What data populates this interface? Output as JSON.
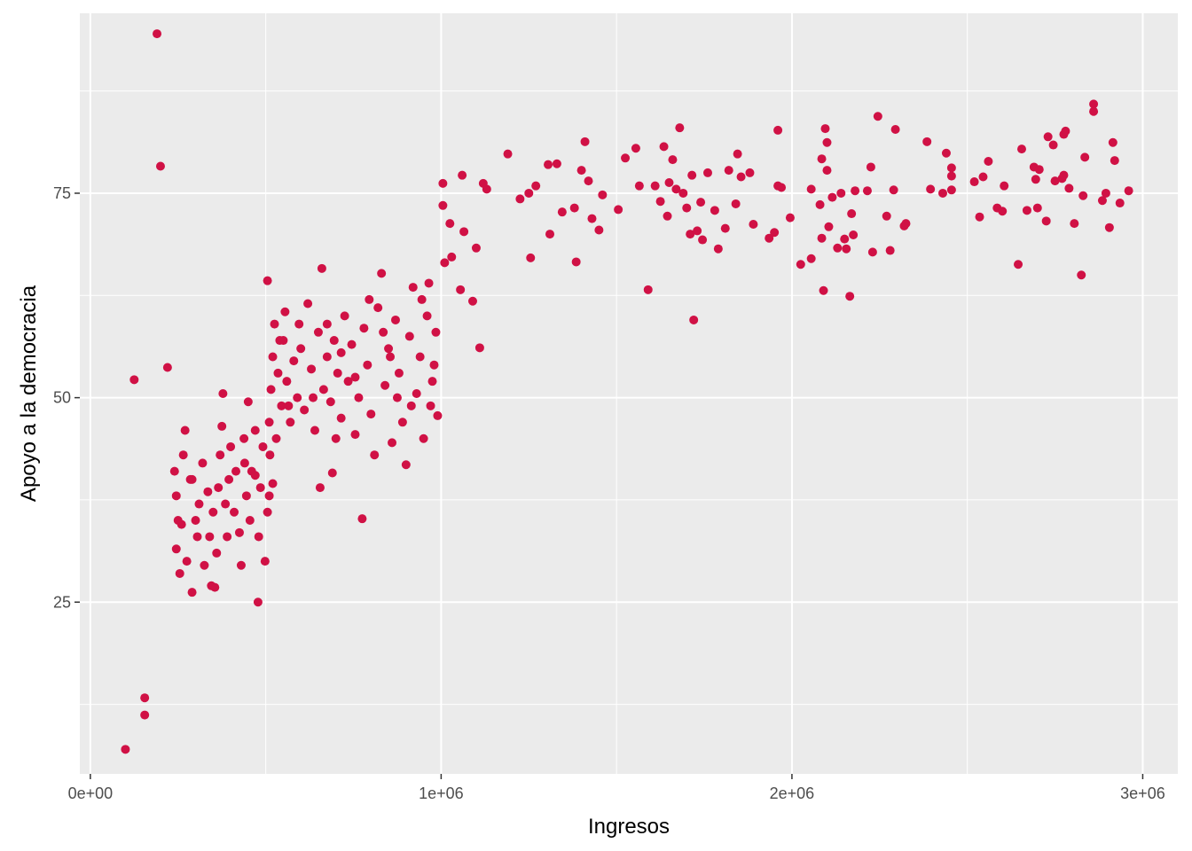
{
  "chart_data": {
    "type": "scatter",
    "title": "",
    "xlabel": "Ingresos",
    "ylabel": "Apoyo a la democracia",
    "xlim": [
      -30000,
      3100000
    ],
    "ylim": [
      4,
      97
    ],
    "x_ticks": [
      0,
      1000000,
      2000000,
      3000000
    ],
    "x_tick_labels": [
      "0e+00",
      "1e+06",
      "2e+06",
      "3e+06"
    ],
    "y_ticks": [
      25,
      50,
      75
    ],
    "y_tick_labels": [
      "25",
      "50",
      "75"
    ],
    "grid": true,
    "legend": "none",
    "colors": {
      "point": "#d01145",
      "panel": "#ebebeb",
      "grid": "#ffffff"
    },
    "points": [
      [
        100000,
        7
      ],
      [
        155000,
        11.2
      ],
      [
        155000,
        13.3
      ],
      [
        125000,
        52.2
      ],
      [
        190000,
        94.5
      ],
      [
        200000,
        78.3
      ],
      [
        220000,
        53.7
      ],
      [
        240000,
        41
      ],
      [
        245000,
        38
      ],
      [
        250000,
        35
      ],
      [
        245000,
        31.5
      ],
      [
        255000,
        28.5
      ],
      [
        260000,
        34.5
      ],
      [
        265000,
        43
      ],
      [
        270000,
        46
      ],
      [
        275000,
        30
      ],
      [
        285000,
        40
      ],
      [
        290000,
        26.2
      ],
      [
        300000,
        35
      ],
      [
        305000,
        33
      ],
      [
        310000,
        37
      ],
      [
        320000,
        42
      ],
      [
        325000,
        29.5
      ],
      [
        335000,
        38.5
      ],
      [
        340000,
        33
      ],
      [
        350000,
        36
      ],
      [
        355000,
        26.8
      ],
      [
        360000,
        31
      ],
      [
        365000,
        39
      ],
      [
        370000,
        43
      ],
      [
        375000,
        46.5
      ],
      [
        378000,
        50.5
      ],
      [
        385000,
        37
      ],
      [
        390000,
        33
      ],
      [
        395000,
        40
      ],
      [
        400000,
        44
      ],
      [
        410000,
        36
      ],
      [
        415000,
        41
      ],
      [
        425000,
        33.5
      ],
      [
        430000,
        29.5
      ],
      [
        438000,
        45
      ],
      [
        445000,
        38
      ],
      [
        450000,
        49.5
      ],
      [
        455000,
        35
      ],
      [
        460000,
        41
      ],
      [
        470000,
        46
      ],
      [
        478000,
        25
      ],
      [
        480000,
        33
      ],
      [
        485000,
        39
      ],
      [
        492000,
        44
      ],
      [
        498000,
        30
      ],
      [
        505000,
        36
      ],
      [
        512000,
        43
      ],
      [
        470000,
        40.5
      ],
      [
        510000,
        38
      ],
      [
        520000,
        39.5
      ],
      [
        345000,
        27
      ],
      [
        290000,
        40
      ],
      [
        440000,
        42
      ],
      [
        505000,
        64.3
      ],
      [
        510000,
        47
      ],
      [
        515000,
        51
      ],
      [
        520000,
        55
      ],
      [
        525000,
        59
      ],
      [
        530000,
        45
      ],
      [
        535000,
        53
      ],
      [
        545000,
        49
      ],
      [
        550000,
        57
      ],
      [
        555000,
        60.5
      ],
      [
        560000,
        52
      ],
      [
        570000,
        47
      ],
      [
        580000,
        54.5
      ],
      [
        590000,
        50
      ],
      [
        600000,
        56
      ],
      [
        610000,
        48.5
      ],
      [
        620000,
        61.5
      ],
      [
        630000,
        53.5
      ],
      [
        640000,
        46
      ],
      [
        650000,
        58
      ],
      [
        655000,
        39
      ],
      [
        660000,
        65.8
      ],
      [
        665000,
        51
      ],
      [
        675000,
        55
      ],
      [
        685000,
        49.5
      ],
      [
        690000,
        40.8
      ],
      [
        695000,
        57
      ],
      [
        705000,
        53
      ],
      [
        715000,
        47.5
      ],
      [
        725000,
        60
      ],
      [
        735000,
        52
      ],
      [
        745000,
        56.5
      ],
      [
        755000,
        45.5
      ],
      [
        765000,
        50
      ],
      [
        775000,
        35.2
      ],
      [
        780000,
        58.5
      ],
      [
        790000,
        54
      ],
      [
        800000,
        48
      ],
      [
        810000,
        43
      ],
      [
        820000,
        61
      ],
      [
        830000,
        65.2
      ],
      [
        840000,
        51.5
      ],
      [
        850000,
        56
      ],
      [
        860000,
        44.5
      ],
      [
        870000,
        59.5
      ],
      [
        880000,
        53
      ],
      [
        890000,
        47
      ],
      [
        900000,
        41.8
      ],
      [
        910000,
        57.5
      ],
      [
        920000,
        63.5
      ],
      [
        930000,
        50.5
      ],
      [
        940000,
        55
      ],
      [
        950000,
        45
      ],
      [
        960000,
        60
      ],
      [
        970000,
        49
      ],
      [
        980000,
        54
      ],
      [
        990000,
        47.8
      ],
      [
        985000,
        58
      ],
      [
        975000,
        52
      ],
      [
        945000,
        62
      ],
      [
        915000,
        49
      ],
      [
        875000,
        50
      ],
      [
        835000,
        58
      ],
      [
        795000,
        62
      ],
      [
        755000,
        52.5
      ],
      [
        715000,
        55.5
      ],
      [
        675000,
        59
      ],
      [
        635000,
        50
      ],
      [
        595000,
        59
      ],
      [
        565000,
        49
      ],
      [
        540000,
        57
      ],
      [
        700000,
        45
      ],
      [
        855000,
        55
      ],
      [
        965000,
        64
      ],
      [
        1005000,
        76.2
      ],
      [
        1005000,
        73.5
      ],
      [
        1010000,
        66.5
      ],
      [
        1025000,
        71.3
      ],
      [
        1030000,
        67.2
      ],
      [
        1055000,
        63.2
      ],
      [
        1060000,
        77.2
      ],
      [
        1065000,
        70.3
      ],
      [
        1090000,
        61.8
      ],
      [
        1100000,
        68.3
      ],
      [
        1110000,
        56.1
      ],
      [
        1120000,
        76.2
      ],
      [
        1130000,
        75.5
      ],
      [
        1190000,
        79.8
      ],
      [
        1225000,
        74.3
      ],
      [
        1250000,
        75
      ],
      [
        1255000,
        67.1
      ],
      [
        1270000,
        75.9
      ],
      [
        1305000,
        78.5
      ],
      [
        1310000,
        70
      ],
      [
        1330000,
        78.6
      ],
      [
        1345000,
        72.7
      ],
      [
        1380000,
        73.2
      ],
      [
        1385000,
        66.6
      ],
      [
        1400000,
        77.8
      ],
      [
        1410000,
        81.3
      ],
      [
        1420000,
        76.5
      ],
      [
        1430000,
        71.9
      ],
      [
        1450000,
        70.5
      ],
      [
        1460000,
        74.8
      ],
      [
        1505000,
        73
      ],
      [
        1525000,
        79.3
      ],
      [
        1555000,
        80.5
      ],
      [
        1565000,
        75.9
      ],
      [
        1590000,
        63.2
      ],
      [
        1610000,
        75.9
      ],
      [
        1625000,
        74
      ],
      [
        1635000,
        80.7
      ],
      [
        1645000,
        72.2
      ],
      [
        1650000,
        76.3
      ],
      [
        1660000,
        79.1
      ],
      [
        1670000,
        75.5
      ],
      [
        1680000,
        83
      ],
      [
        1690000,
        75
      ],
      [
        1700000,
        73.2
      ],
      [
        1710000,
        70
      ],
      [
        1715000,
        77.2
      ],
      [
        1720000,
        59.5
      ],
      [
        1730000,
        70.4
      ],
      [
        1740000,
        73.9
      ],
      [
        1745000,
        69.3
      ],
      [
        1760000,
        77.5
      ],
      [
        1780000,
        72.9
      ],
      [
        1790000,
        68.2
      ],
      [
        1810000,
        70.7
      ],
      [
        1820000,
        77.8
      ],
      [
        1840000,
        73.7
      ],
      [
        1845000,
        79.8
      ],
      [
        1855000,
        77
      ],
      [
        1880000,
        77.5
      ],
      [
        1890000,
        71.2
      ],
      [
        1935000,
        69.5
      ],
      [
        1950000,
        70.2
      ],
      [
        1960000,
        82.7
      ],
      [
        1960000,
        75.9
      ],
      [
        1970000,
        75.7
      ],
      [
        1995000,
        72
      ],
      [
        2025000,
        66.3
      ],
      [
        2055000,
        75.5
      ],
      [
        2055000,
        67
      ],
      [
        2080000,
        73.6
      ],
      [
        2085000,
        79.2
      ],
      [
        2085000,
        69.5
      ],
      [
        2090000,
        63.1
      ],
      [
        2095000,
        82.9
      ],
      [
        2100000,
        81.2
      ],
      [
        2100000,
        77.8
      ],
      [
        2105000,
        70.9
      ],
      [
        2115000,
        74.5
      ],
      [
        2130000,
        68.3
      ],
      [
        2140000,
        75
      ],
      [
        2150000,
        69.4
      ],
      [
        2155000,
        68.2
      ],
      [
        2165000,
        62.4
      ],
      [
        2170000,
        72.5
      ],
      [
        2175000,
        69.9
      ],
      [
        2180000,
        75.3
      ],
      [
        2215000,
        75.3
      ],
      [
        2225000,
        78.2
      ],
      [
        2230000,
        67.8
      ],
      [
        2245000,
        84.4
      ],
      [
        2270000,
        72.2
      ],
      [
        2280000,
        68
      ],
      [
        2290000,
        75.4
      ],
      [
        2295000,
        82.8
      ],
      [
        2320000,
        71
      ],
      [
        2325000,
        71.3
      ],
      [
        2385000,
        81.3
      ],
      [
        2395000,
        75.5
      ],
      [
        2430000,
        75
      ],
      [
        2440000,
        79.9
      ],
      [
        2455000,
        75.4
      ],
      [
        2455000,
        78.1
      ],
      [
        2455000,
        77.1
      ],
      [
        2520000,
        76.4
      ],
      [
        2535000,
        72.1
      ],
      [
        2545000,
        77
      ],
      [
        2560000,
        78.9
      ],
      [
        2585000,
        73.2
      ],
      [
        2600000,
        72.8
      ],
      [
        2605000,
        75.9
      ],
      [
        2645000,
        66.3
      ],
      [
        2655000,
        80.4
      ],
      [
        2670000,
        72.9
      ],
      [
        2690000,
        78.2
      ],
      [
        2695000,
        76.7
      ],
      [
        2700000,
        73.2
      ],
      [
        2705000,
        77.9
      ],
      [
        2725000,
        71.6
      ],
      [
        2730000,
        81.9
      ],
      [
        2745000,
        80.9
      ],
      [
        2750000,
        76.5
      ],
      [
        2770000,
        76.8
      ],
      [
        2775000,
        82.2
      ],
      [
        2775000,
        77.2
      ],
      [
        2780000,
        82.6
      ],
      [
        2790000,
        75.6
      ],
      [
        2805000,
        71.3
      ],
      [
        2825000,
        65
      ],
      [
        2830000,
        74.7
      ],
      [
        2835000,
        79.4
      ],
      [
        2860000,
        85.9
      ],
      [
        2860000,
        85
      ],
      [
        2885000,
        74.1
      ],
      [
        2895000,
        75
      ],
      [
        2905000,
        70.8
      ],
      [
        2915000,
        81.2
      ],
      [
        2920000,
        79
      ],
      [
        2935000,
        73.8
      ],
      [
        2960000,
        75.3
      ]
    ]
  }
}
